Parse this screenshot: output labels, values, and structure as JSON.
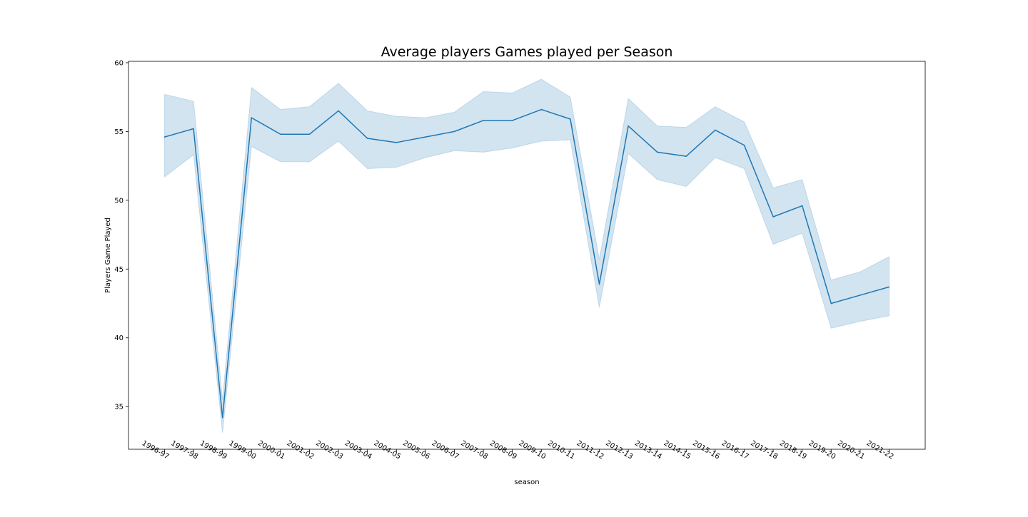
{
  "chart_data": {
    "type": "line",
    "title": "Average players Games played per Season",
    "xlabel": "season",
    "ylabel": "Players Game Played",
    "categories": [
      "1996-97",
      "1997-98",
      "1998-99",
      "1999-00",
      "2000-01",
      "2001-02",
      "2002-03",
      "2003-04",
      "2004-05",
      "2005-06",
      "2006-07",
      "2007-08",
      "2008-09",
      "2009-10",
      "2010-11",
      "2011-12",
      "2012-13",
      "2013-14",
      "2014-15",
      "2015-16",
      "2016-17",
      "2017-18",
      "2018-19",
      "2019-20",
      "2020-21",
      "2021-22"
    ],
    "series": [
      {
        "values": [
          54.6,
          55.2,
          34.2,
          56.0,
          54.8,
          54.8,
          56.5,
          54.5,
          54.2,
          54.6,
          55.0,
          55.8,
          55.8,
          56.6,
          55.9,
          43.9,
          55.4,
          53.5,
          53.2,
          55.1,
          54.0,
          48.8,
          49.6,
          42.5,
          43.1,
          43.7
        ],
        "ci_upper": [
          57.7,
          57.2,
          35.5,
          58.2,
          56.6,
          56.8,
          58.5,
          56.5,
          56.1,
          56.0,
          56.4,
          57.9,
          57.8,
          58.8,
          57.5,
          45.7,
          57.4,
          55.4,
          55.3,
          56.8,
          55.7,
          50.9,
          51.5,
          44.2,
          44.8,
          45.9
        ],
        "ci_lower": [
          51.7,
          53.3,
          33.1,
          53.9,
          52.8,
          52.8,
          54.3,
          52.3,
          52.4,
          53.1,
          53.6,
          53.5,
          53.8,
          54.3,
          54.4,
          42.2,
          53.4,
          51.5,
          51.0,
          53.1,
          52.3,
          46.8,
          47.6,
          40.7,
          41.2,
          41.6
        ]
      }
    ],
    "ylim": [
      31.9,
      60.1
    ],
    "yticks": [
      35,
      40,
      45,
      50,
      55,
      60
    ],
    "grid": false,
    "colors": {
      "line": "#1f77b4",
      "band": "#1f77b4",
      "axes": "#000000"
    }
  }
}
